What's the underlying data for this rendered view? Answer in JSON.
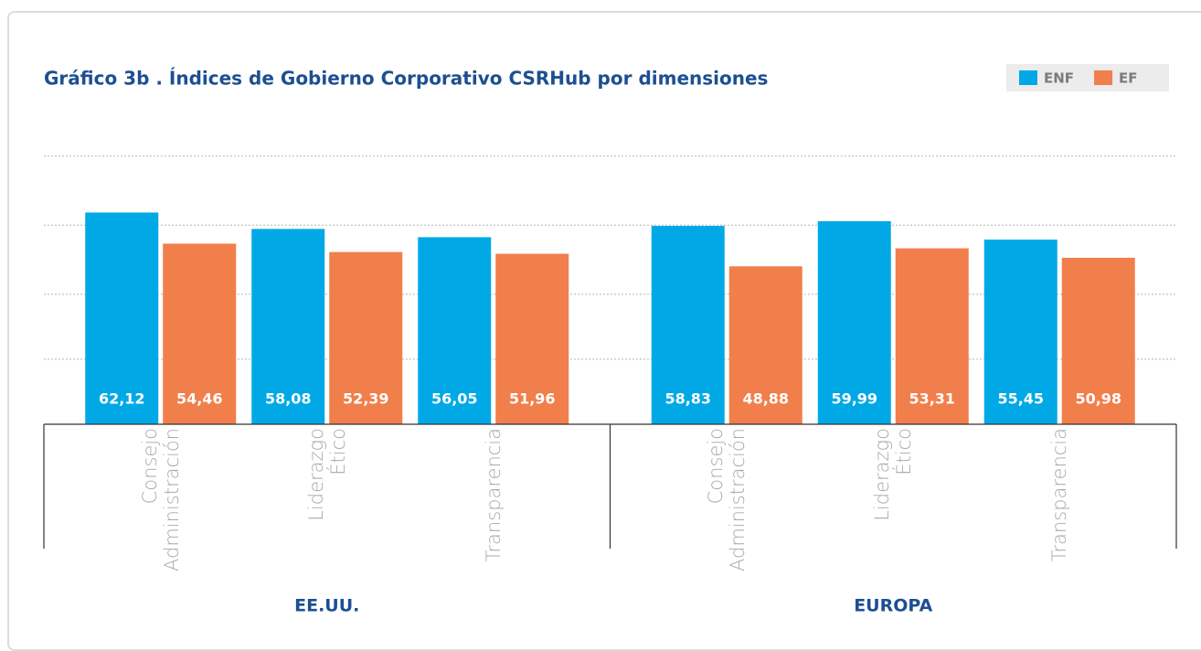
{
  "chart_data": {
    "type": "bar",
    "title": "Gráfico 3b . Índices de Gobierno Corporativo CSRHub por dimensiones",
    "groups": [
      "EE.UU.",
      "EUROPA"
    ],
    "categories": [
      "Consejo Administración",
      "Liderazgo Ético",
      "Transparencia",
      "Consejo Administración",
      "Liderazgo Ético",
      "Transparencia"
    ],
    "series": [
      {
        "name": "ENF",
        "color": "#00a9e6",
        "values": [
          62.12,
          58.08,
          56.05,
          58.83,
          59.99,
          55.45
        ],
        "value_labels": [
          "62,12",
          "58,08",
          "56,05",
          "58,83",
          "59,99",
          "55,45"
        ]
      },
      {
        "name": "EF",
        "color": "#f17f4b",
        "values": [
          54.46,
          52.39,
          51.96,
          48.88,
          53.31,
          50.98
        ],
        "value_labels": [
          "54,46",
          "52,39",
          "51,96",
          "48,88",
          "53,31",
          "50,98"
        ]
      }
    ],
    "ylim": [
      10,
      80
    ],
    "yticks": [
      26,
      42,
      59,
      76
    ],
    "grid": true,
    "legend": "top-right"
  }
}
